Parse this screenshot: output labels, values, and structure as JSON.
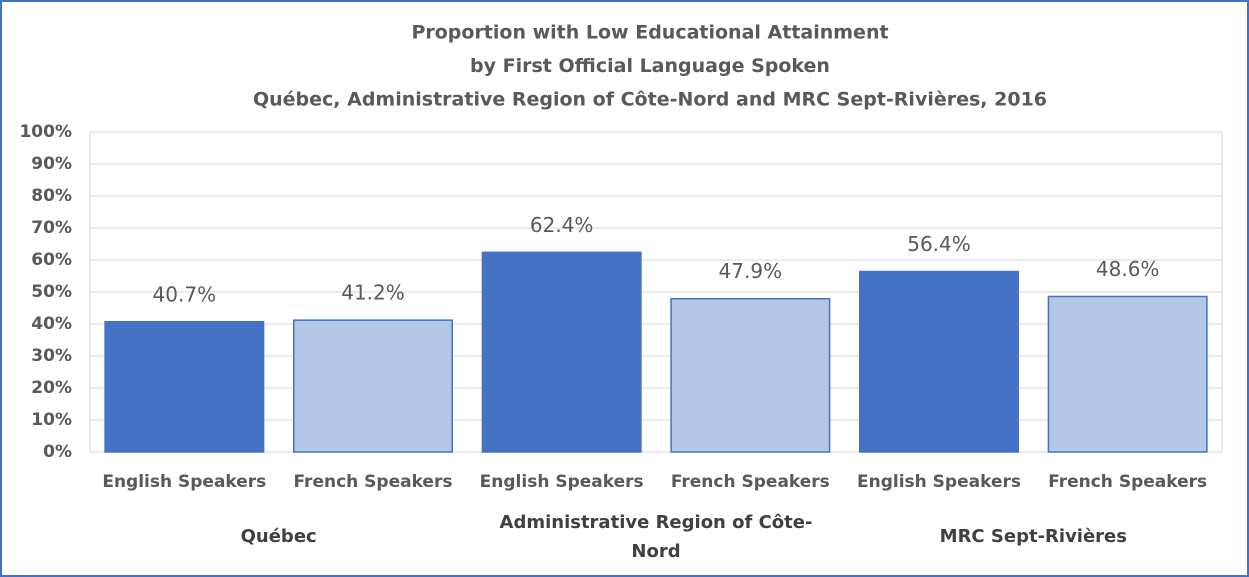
{
  "chart_data": {
    "type": "bar",
    "title": [
      "Proportion with Low Educational Attainment",
      "by First Official Language Spoken",
      "Québec, Administrative Region of Côte-Nord and MRC Sept-Rivières, 2016"
    ],
    "groups": [
      {
        "name": "Québec",
        "categories": [
          "English Speakers",
          "French Speakers"
        ],
        "values": [
          40.7,
          41.2
        ],
        "value_labels": [
          "40.7%",
          "41.2%"
        ]
      },
      {
        "name": "Administrative Region of Côte-Nord",
        "categories": [
          "English Speakers",
          "French Speakers"
        ],
        "values": [
          62.4,
          47.9
        ],
        "value_labels": [
          "62.4%",
          "47.9%"
        ]
      },
      {
        "name": "MRC Sept-Rivières",
        "categories": [
          "English Speakers",
          "French Speakers"
        ],
        "values": [
          56.4,
          48.6
        ],
        "value_labels": [
          "56.4%",
          "48.6%"
        ]
      }
    ],
    "colors": [
      "#4472c4",
      "#b4c7e7"
    ],
    "ylim": [
      0,
      100
    ],
    "yticks": [
      {
        "value": 0,
        "label": "0%"
      },
      {
        "value": 10,
        "label": "10%"
      },
      {
        "value": 20,
        "label": "20%"
      },
      {
        "value": 30,
        "label": "30%"
      },
      {
        "value": 40,
        "label": "40%"
      },
      {
        "value": 50,
        "label": "50%"
      },
      {
        "value": 60,
        "label": "60%"
      },
      {
        "value": 70,
        "label": "70%"
      },
      {
        "value": 80,
        "label": "80%"
      },
      {
        "value": 90,
        "label": "90%"
      },
      {
        "value": 100,
        "label": "100%"
      }
    ],
    "grid": true
  }
}
